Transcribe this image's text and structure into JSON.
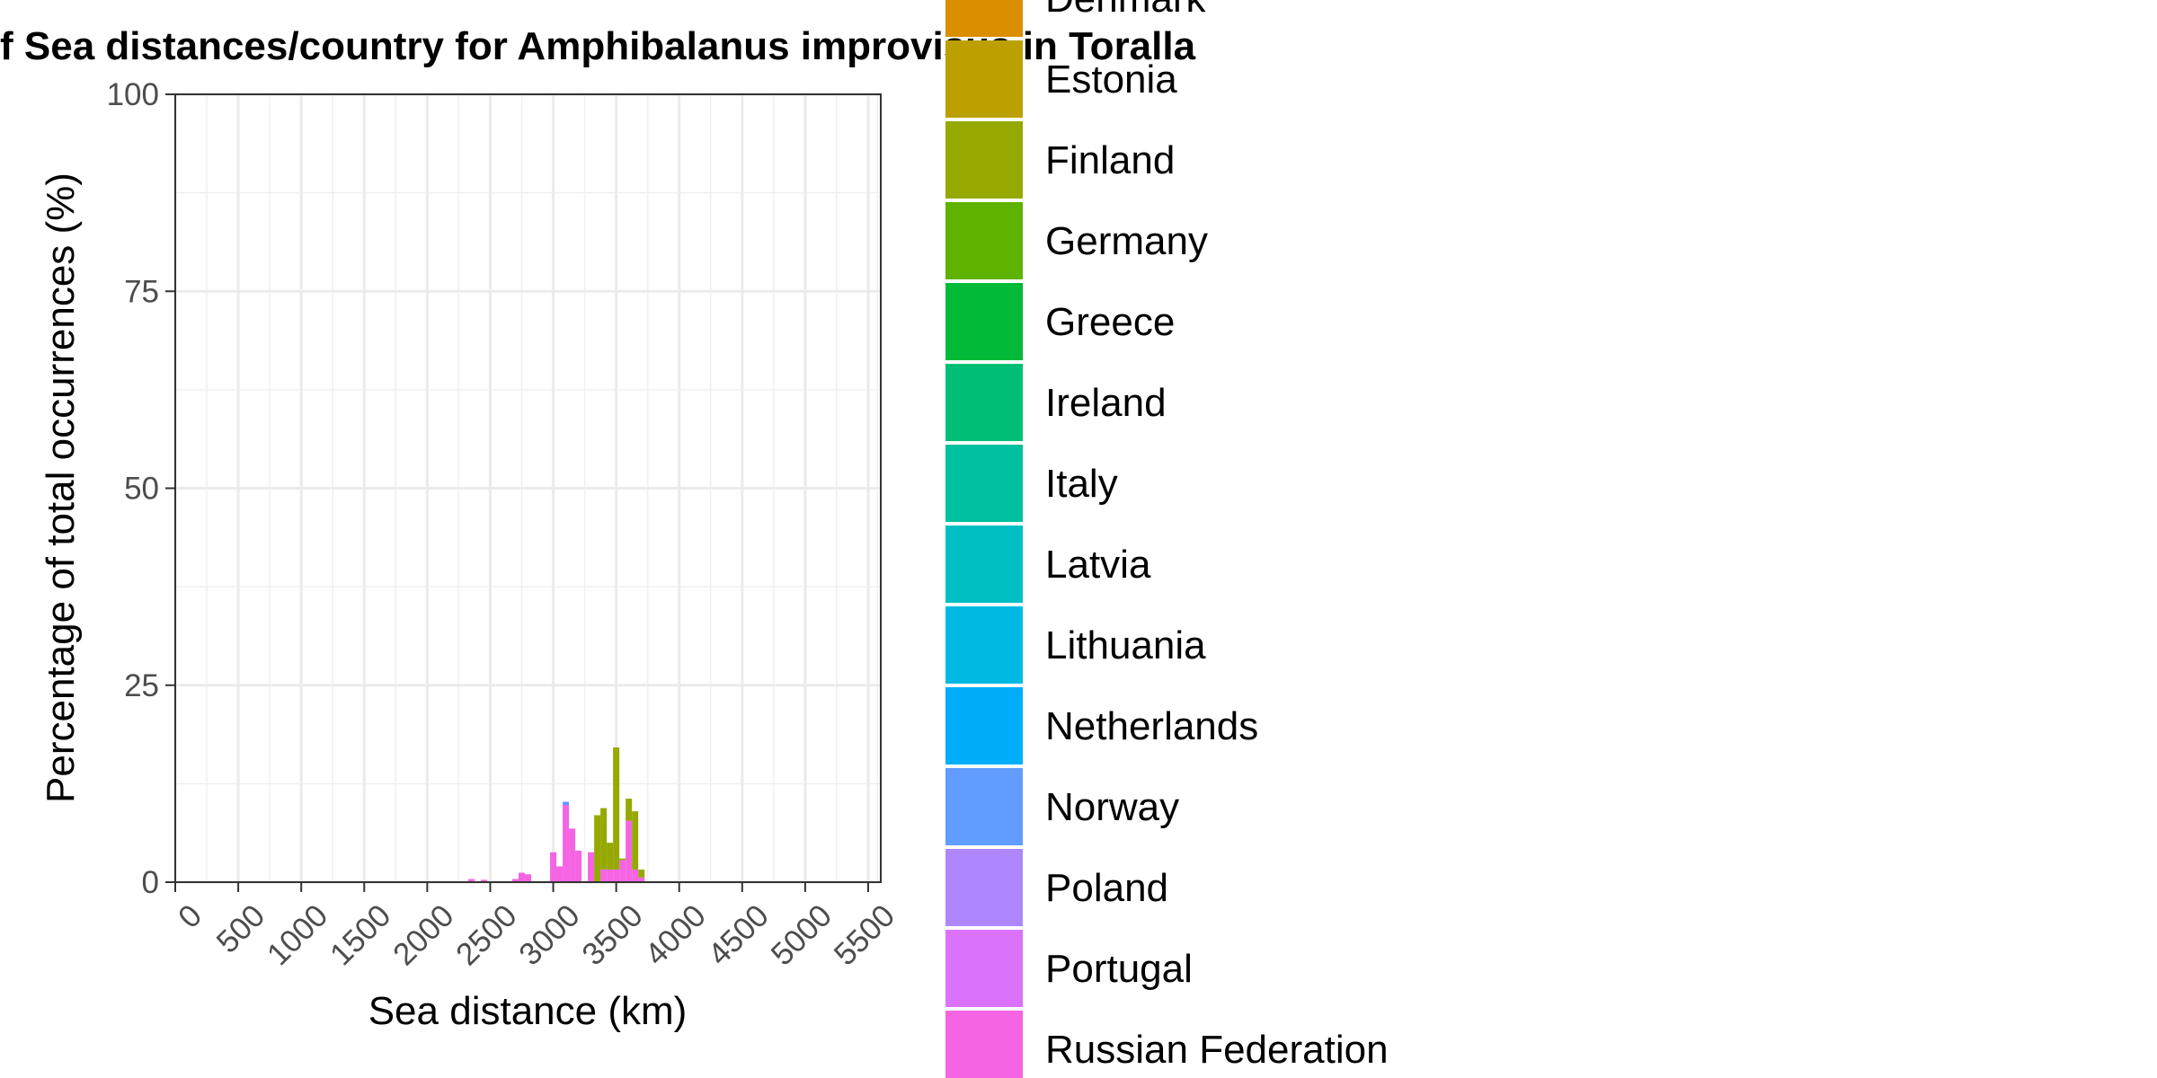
{
  "chart_data": {
    "type": "bar",
    "stacked": true,
    "title": "f Sea distances/country for Amphibalanus improvisus in Toralla",
    "xlabel": "Sea distance (km)",
    "ylabel": "Percentage of total occurrences (%)",
    "xlim": [
      0,
      5500
    ],
    "ylim": [
      0,
      100
    ],
    "x_ticks": [
      0,
      500,
      1000,
      1500,
      2000,
      2500,
      3000,
      3500,
      4000,
      4500,
      5000,
      5500
    ],
    "y_ticks": [
      0,
      25,
      50,
      75,
      100
    ],
    "grid": true,
    "legend_position": "right",
    "bin_width": 50,
    "series": [
      {
        "name": "Russian Federation",
        "color": "#F564E3",
        "x": [
          2350,
          2450,
          2700,
          2750,
          2800,
          3000,
          3050,
          3100,
          3150,
          3200,
          3300,
          3400,
          3450,
          3500,
          3550,
          3600,
          3650,
          3700
        ],
        "values": [
          0.4,
          0.3,
          0.4,
          1.2,
          1.0,
          3.8,
          2.0,
          9.8,
          6.8,
          4.0,
          3.8,
          1.6,
          1.6,
          1.6,
          2.8,
          7.8,
          1.6,
          0.6
        ]
      },
      {
        "name": "Norway",
        "color": "#619CFF",
        "x": [
          3100
        ],
        "values": [
          0.4
        ]
      },
      {
        "name": "Finland",
        "color": "#96A900",
        "x": [
          3350,
          3400,
          3450,
          3500,
          3550,
          3600,
          3650,
          3700
        ],
        "values": [
          8.5,
          7.8,
          3.4,
          15.5,
          0.2,
          2.8,
          7.4,
          1.0
        ]
      }
    ],
    "legend": [
      {
        "name": "Denmark",
        "color": "#DB8E00"
      },
      {
        "name": "Estonia",
        "color": "#BCA000"
      },
      {
        "name": "Finland",
        "color": "#96A900"
      },
      {
        "name": "Germany",
        "color": "#5EB300"
      },
      {
        "name": "Greece",
        "color": "#00BA38"
      },
      {
        "name": "Ireland",
        "color": "#00BF74"
      },
      {
        "name": "Italy",
        "color": "#00C19F"
      },
      {
        "name": "Latvia",
        "color": "#00BFC4"
      },
      {
        "name": "Lithuania",
        "color": "#00B9E3"
      },
      {
        "name": "Netherlands",
        "color": "#00ADFA"
      },
      {
        "name": "Norway",
        "color": "#619CFF"
      },
      {
        "name": "Poland",
        "color": "#AE87FF"
      },
      {
        "name": "Portugal",
        "color": "#DB72FB"
      },
      {
        "name": "Russian Federation",
        "color": "#F564E3"
      }
    ]
  }
}
